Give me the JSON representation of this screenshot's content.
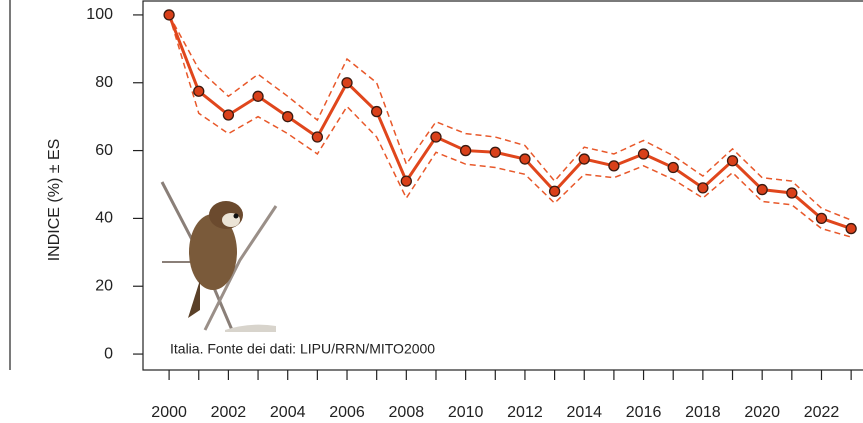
{
  "chart_data": {
    "type": "line",
    "ylabel": "INDICE (%) ± ES",
    "annotation": "Italia. Fonte dei dati: LIPU/RRN/MITO2000",
    "x": [
      2000,
      2001,
      2002,
      2003,
      2004,
      2005,
      2006,
      2007,
      2008,
      2009,
      2010,
      2011,
      2012,
      2013,
      2014,
      2015,
      2016,
      2017,
      2018,
      2019,
      2020,
      2021,
      2022,
      2023
    ],
    "values": [
      100,
      77.5,
      70.5,
      76,
      70,
      64,
      80,
      71.5,
      51,
      64,
      60,
      59.5,
      57.5,
      48,
      57.5,
      55.5,
      59,
      55,
      49,
      57,
      48.5,
      47.5,
      40,
      37
    ],
    "error_band": {
      "upper": [
        100,
        84,
        76,
        82.5,
        76,
        69,
        87,
        80,
        56,
        68.5,
        65,
        64,
        61.5,
        51,
        61,
        59,
        63,
        58.5,
        52.5,
        60.5,
        52,
        51,
        43,
        39.5
      ],
      "lower": [
        100,
        71,
        65,
        70,
        65,
        59,
        73,
        64,
        46,
        59.5,
        56,
        55,
        53,
        44.5,
        53,
        52,
        55.5,
        51.5,
        46,
        53.5,
        45,
        44,
        37,
        34.5
      ],
      "color": "#e8582a"
    },
    "color": "#e0461c",
    "marker_color": "#d9401a",
    "xlim": [
      1999.12,
      2023.4
    ],
    "ylim": [
      -4.7,
      104.4
    ],
    "xticks": [
      2000,
      2002,
      2004,
      2006,
      2008,
      2010,
      2012,
      2014,
      2016,
      2018,
      2020,
      2022
    ],
    "xticks_minor": [
      2001,
      2003,
      2005,
      2007,
      2009,
      2011,
      2013,
      2015,
      2017,
      2019,
      2021,
      2023
    ],
    "yticks": [
      0,
      20,
      40,
      60,
      80,
      100
    ]
  }
}
